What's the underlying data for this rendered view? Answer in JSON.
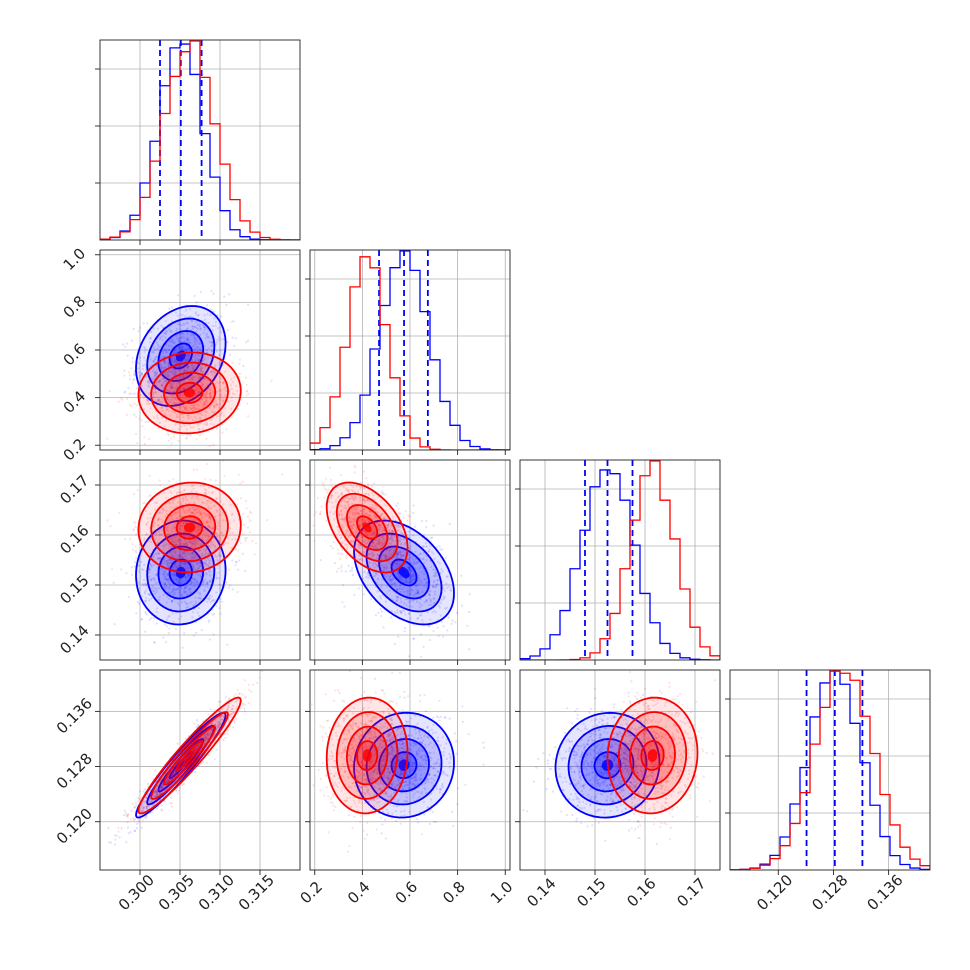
{
  "chart_data": {
    "type": "corner",
    "grid": true,
    "colors": {
      "red": "#ff0000",
      "blue": "#0000ff"
    },
    "parameters": [
      {
        "range": [
          0.295,
          0.32
        ],
        "ticks": [
          0.3,
          0.305,
          0.31,
          0.315
        ],
        "tick_labels": [
          "0.300",
          "0.305",
          "0.310",
          "0.315"
        ]
      },
      {
        "range": [
          0.18,
          1.02
        ],
        "ticks": [
          0.2,
          0.4,
          0.6,
          0.8,
          1.0
        ],
        "tick_labels": [
          "0.2",
          "0.4",
          "0.6",
          "0.8",
          "1.0"
        ]
      },
      {
        "range": [
          0.135,
          0.175
        ],
        "ticks": [
          0.14,
          0.15,
          0.16,
          0.17
        ],
        "tick_labels": [
          "0.14",
          "0.15",
          "0.16",
          "0.17"
        ]
      },
      {
        "range": [
          0.113,
          0.142
        ],
        "ticks": [
          0.12,
          0.128,
          0.136
        ],
        "tick_labels": [
          "0.120",
          "0.128",
          "0.136"
        ]
      }
    ],
    "series": [
      {
        "color": "#0000ff",
        "means": [
          0.3051,
          0.575,
          0.1525,
          0.1282
        ],
        "sds": [
          0.0028,
          0.105,
          0.0052,
          0.0038
        ],
        "quantiles": [
          [
            0.3025,
            0.3051,
            0.3077
          ],
          [
            0.47,
            0.575,
            0.675
          ],
          [
            0.148,
            0.1525,
            0.1575
          ],
          [
            0.1241,
            0.1282,
            0.1322
          ]
        ],
        "correlations": [
          {
            "i": 1,
            "j": 0,
            "rho": 0.25
          },
          {
            "i": 2,
            "j": 0,
            "rho": 0.05
          },
          {
            "i": 2,
            "j": 1,
            "rho": -0.4
          },
          {
            "i": 3,
            "j": 0,
            "rho": 0.95
          },
          {
            "i": 3,
            "j": 1,
            "rho": 0.05
          },
          {
            "i": 3,
            "j": 2,
            "rho": 0.05
          }
        ]
      },
      {
        "color": "#ff0000",
        "means": [
          0.3062,
          0.42,
          0.1615,
          0.1296
        ],
        "sds": [
          0.0032,
          0.085,
          0.0045,
          0.0042
        ],
        "quantiles": null,
        "correlations": [
          {
            "i": 1,
            "j": 0,
            "rho": 0.05
          },
          {
            "i": 2,
            "j": 0,
            "rho": 0.05
          },
          {
            "i": 2,
            "j": 1,
            "rho": -0.45
          },
          {
            "i": 3,
            "j": 0,
            "rho": 0.95
          },
          {
            "i": 3,
            "j": 1,
            "rho": 0.05
          },
          {
            "i": 3,
            "j": 2,
            "rho": 0.05
          }
        ]
      }
    ],
    "contour_levels": [
      0.5,
      1.0,
      1.5,
      2.0
    ]
  }
}
